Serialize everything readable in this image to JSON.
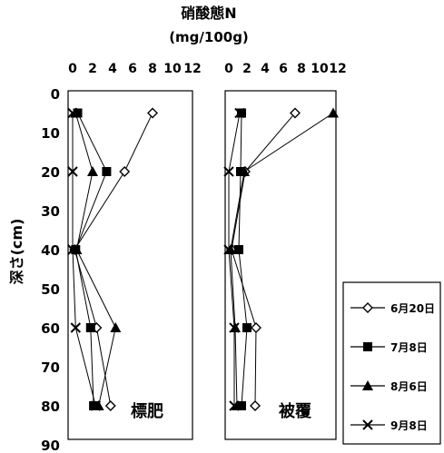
{
  "chart_data": {
    "type": "line",
    "title": "硝酸態N",
    "title_unit": "(mg/100g)",
    "ylabel": "深さ(cm)",
    "ylim": [
      0,
      90
    ],
    "y_ticks": [
      0,
      10,
      20,
      30,
      40,
      50,
      60,
      70,
      80,
      90
    ],
    "x_ticks": [
      "0",
      "2",
      "4",
      "6",
      "8",
      "10",
      "12"
    ],
    "xlim": [
      0,
      12
    ],
    "grid": false,
    "legend_placement": "bottom-right",
    "y_depths": [
      5,
      20,
      40,
      60,
      80
    ],
    "panels": [
      {
        "label": "標肥",
        "series": [
          {
            "name": "6月20日",
            "marker": "diamond-open",
            "x": [
              8.0,
              5.2,
              0.2,
              2.4,
              3.8
            ],
            "y": [
              5,
              20,
              40,
              60,
              80
            ]
          },
          {
            "name": "7月8日",
            "marker": "square",
            "x": [
              0.5,
              3.4,
              0.3,
              1.8,
              2.1
            ],
            "y": [
              5,
              20,
              40,
              60,
              80
            ]
          },
          {
            "name": "8月6日",
            "marker": "triangle",
            "x": [
              0.3,
              2.0,
              0.4,
              4.3,
              2.6
            ],
            "y": [
              5,
              20,
              40,
              60,
              80
            ]
          },
          {
            "name": "9月8日",
            "marker": "x",
            "x": [
              0.0,
              0.0,
              0.0,
              0.3,
              2.3
            ],
            "y": [
              5,
              20,
              40,
              60,
              80
            ]
          }
        ]
      },
      {
        "label": "被覆",
        "series": [
          {
            "name": "6月20日",
            "marker": "diamond-open",
            "x": [
              7.3,
              1.8,
              0.3,
              3.0,
              2.9
            ],
            "y": [
              5,
              20,
              40,
              60,
              80
            ]
          },
          {
            "name": "7月8日",
            "marker": "square",
            "x": [
              1.4,
              1.3,
              1.1,
              2.0,
              1.4
            ],
            "y": [
              5,
              20,
              40,
              60,
              80
            ]
          },
          {
            "name": "8月6日",
            "marker": "triangle",
            "x": [
              11.5,
              1.7,
              0.2,
              0.7,
              0.9
            ],
            "y": [
              5,
              20,
              40,
              60,
              80
            ]
          },
          {
            "name": "9月8日",
            "marker": "x",
            "x": [
              1.2,
              0.0,
              0.0,
              0.6,
              0.6
            ],
            "y": [
              5,
              20,
              40,
              60,
              80
            ]
          }
        ]
      }
    ],
    "legend": [
      "6月20日",
      "7月8日",
      "8月6日",
      "9月8日"
    ]
  }
}
